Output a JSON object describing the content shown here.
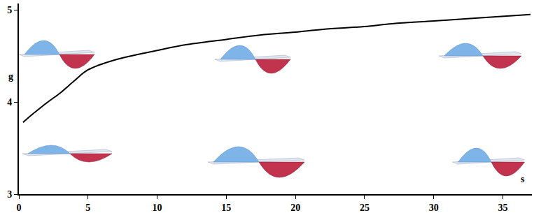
{
  "chart_data": {
    "type": "line",
    "x_label": "s",
    "y_label": "g",
    "x": [
      0.3,
      1,
      2,
      3,
      4,
      5,
      7,
      10,
      12,
      15,
      17,
      20,
      22,
      25,
      27,
      30,
      33,
      37
    ],
    "values": [
      3.78,
      3.87,
      3.99,
      4.1,
      4.23,
      4.35,
      4.46,
      4.56,
      4.62,
      4.68,
      4.72,
      4.76,
      4.79,
      4.82,
      4.85,
      4.88,
      4.91,
      4.95
    ],
    "color": "#000000",
    "xlim": [
      0,
      37.1
    ],
    "xticks": [
      0,
      5,
      10,
      15,
      20,
      25,
      30,
      35
    ],
    "ylim": [
      3,
      5.07
    ],
    "yticks": [
      3,
      4,
      5
    ],
    "grid": false
  }
}
